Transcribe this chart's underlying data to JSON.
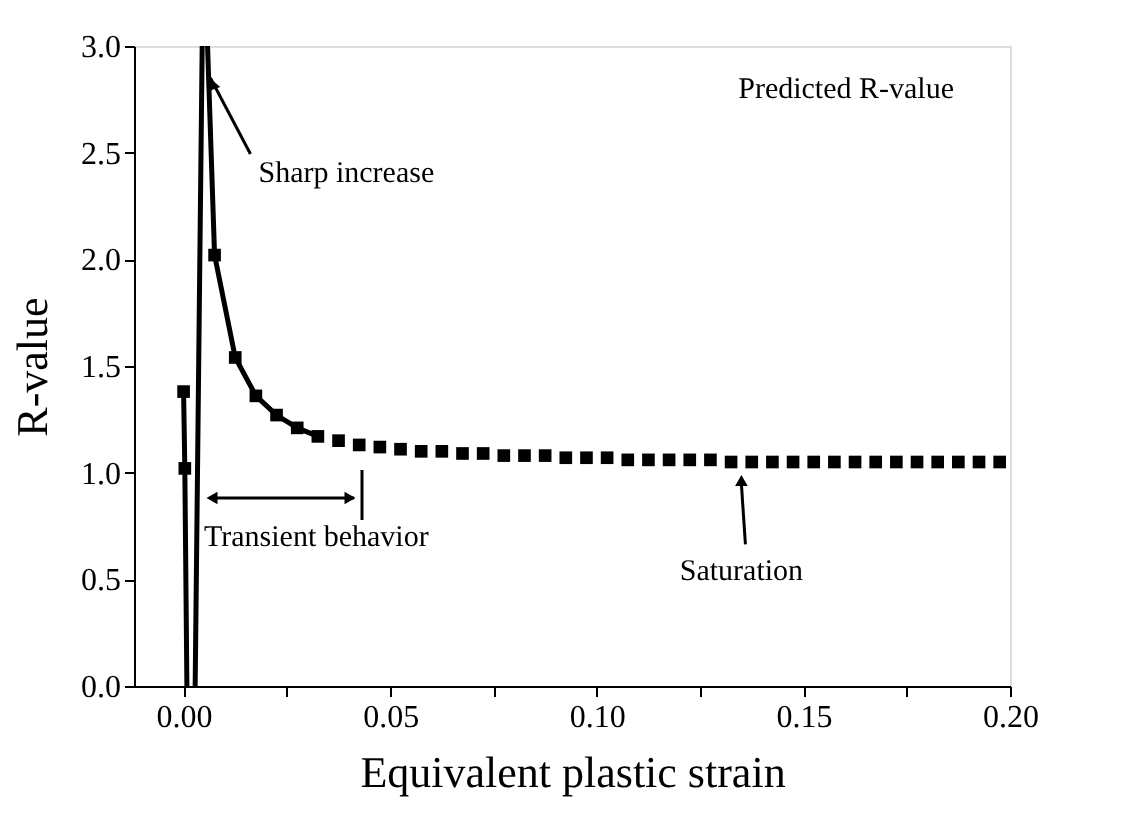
{
  "chart_data": {
    "type": "line",
    "xlabel": "Equivalent plastic strain",
    "ylabel": "R-value",
    "xlim": [
      -0.012,
      0.2
    ],
    "ylim": [
      0,
      3.0
    ],
    "xticks": [
      {
        "value": 0,
        "label": "0.00"
      },
      {
        "value": 0.025,
        "label": null
      },
      0.05,
      {
        "value": 0.075,
        "label": null
      },
      {
        "value": 0.1,
        "label": "0.10"
      },
      {
        "value": 0.125,
        "label": null
      },
      0.15,
      {
        "value": 0.175,
        "label": null
      },
      {
        "value": 0.2,
        "label": "0.20"
      }
    ],
    "yticks": [
      {
        "value": 0,
        "label": "0.0"
      },
      0.5,
      {
        "value": 1,
        "label": "1.0"
      },
      1.5,
      {
        "value": 2,
        "label": "2.0"
      },
      2.5,
      {
        "value": 3,
        "label": "3.0"
      }
    ],
    "grid": false,
    "series": [
      {
        "marker": "none",
        "line_style": "solid",
        "color": "#000000",
        "x": [
          0.0,
          0.0003,
          0.0008,
          0.0018,
          0.0028,
          0.0045,
          0.005,
          0.0058,
          0.0075,
          0.0125,
          0.0175,
          0.0225,
          0.0275,
          0.0325
        ],
        "values": [
          1.38,
          1.02,
          0.0,
          null,
          0.0,
          3.0,
          null,
          3.0,
          2.02,
          1.54,
          1.36,
          1.27,
          1.21,
          1.17
        ]
      },
      {
        "type": "scatter",
        "marker": "square",
        "color": "#000000",
        "x": [
          0.0,
          0.0003,
          0.0075,
          0.0125,
          0.0175,
          0.0225,
          0.0275,
          0.0325,
          0.0375,
          0.0425,
          0.0475,
          0.0525,
          0.0575,
          0.0625,
          0.0675,
          0.0725,
          0.0775,
          0.0825,
          0.0875,
          0.0925,
          0.0975,
          0.1025,
          0.1075,
          0.1125,
          0.1175,
          0.1225,
          0.1275,
          0.1325,
          0.1375,
          0.1425,
          0.1475,
          0.1525,
          0.1575,
          0.1625,
          0.1675,
          0.1725,
          0.1775,
          0.1825,
          0.1875,
          0.1925,
          0.1975
        ],
        "values": [
          1.38,
          1.02,
          2.02,
          1.54,
          1.36,
          1.27,
          1.21,
          1.17,
          1.15,
          1.13,
          1.12,
          1.11,
          1.1,
          1.1,
          1.09,
          1.09,
          1.08,
          1.08,
          1.08,
          1.07,
          1.07,
          1.07,
          1.06,
          1.06,
          1.06,
          1.06,
          1.06,
          1.05,
          1.05,
          1.05,
          1.05,
          1.05,
          1.05,
          1.05,
          1.05,
          1.05,
          1.05,
          1.05,
          1.05,
          1.05,
          1.05
        ]
      }
    ],
    "annotations": [
      "Predicted R-value",
      {
        "text": "Sharp increase",
        "x": 0.0065,
        "y": 2.85
      },
      "Transient behavior",
      {
        "text": "Saturation",
        "x": 0.135,
        "y": 1.02
      }
    ]
  }
}
